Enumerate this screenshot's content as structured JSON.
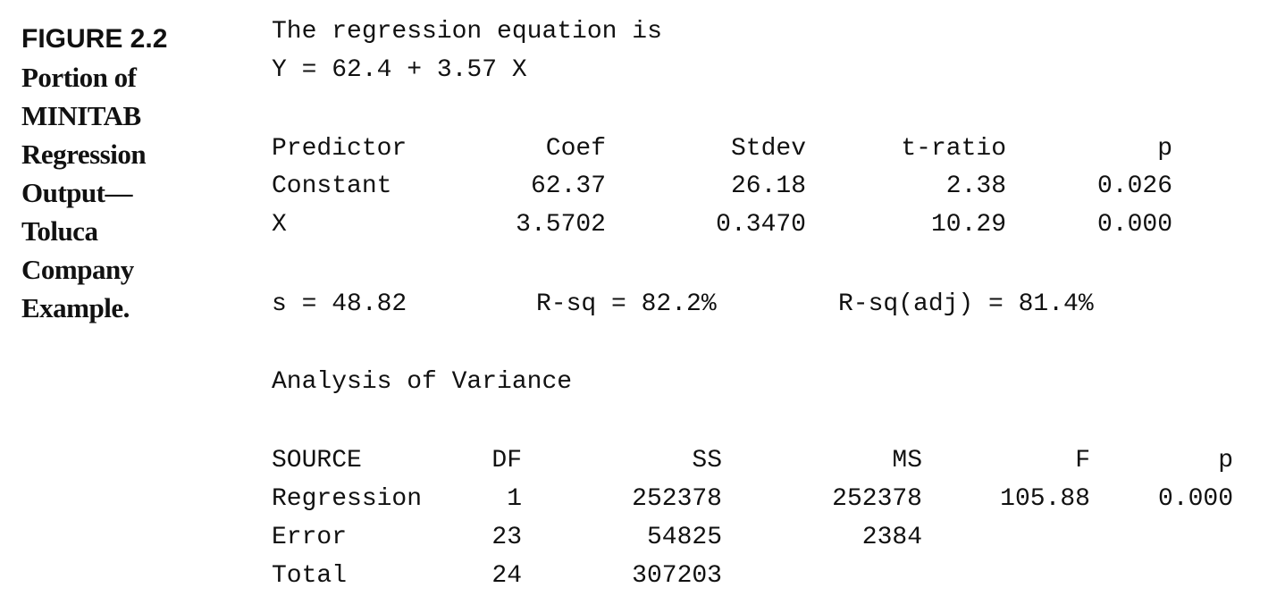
{
  "caption": {
    "figure_label": "FIGURE 2.2",
    "lines": [
      "Portion of",
      "MINITAB",
      "Regression",
      "Output—",
      "Toluca",
      "Company",
      "Example."
    ]
  },
  "output": {
    "equation_intro": "The regression equation is",
    "equation": "Y = 62.4 + 3.57 X",
    "coef_table": {
      "headers": [
        "Predictor",
        "Coef",
        "Stdev",
        "t-ratio",
        "p"
      ],
      "rows": [
        [
          "Constant",
          "62.37",
          "26.18",
          "2.38",
          "0.026"
        ],
        [
          "X",
          "3.5702",
          "0.3470",
          "10.29",
          "0.000"
        ]
      ]
    },
    "fit_stats": {
      "s": "s = 48.82",
      "rsq": "R-sq = 82.2%",
      "rsq_adj": "R-sq(adj) = 81.4%"
    },
    "anova_title": "Analysis of Variance",
    "anova_table": {
      "headers": [
        "SOURCE",
        "DF",
        "SS",
        "MS",
        "F",
        "p"
      ],
      "rows": [
        [
          "Regression",
          "1",
          "252378",
          "252378",
          "105.88",
          "0.000"
        ],
        [
          "Error",
          "23",
          "54825",
          "2384",
          "",
          ""
        ],
        [
          "Total",
          "24",
          "307203",
          "",
          "",
          ""
        ]
      ]
    }
  }
}
